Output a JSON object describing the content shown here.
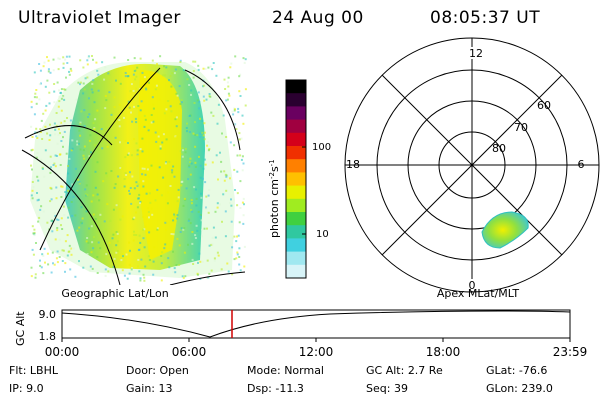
{
  "header": {
    "instrument": "Ultraviolet Imager",
    "date": "24 Aug 00",
    "time": "08:05:37 UT"
  },
  "left_panel": {
    "caption": "Geographic Lat/Lon"
  },
  "colorbar": {
    "label_prefix": "photon cm",
    "label_exp1": "-2",
    "label_mid": "s",
    "label_exp2": "-1",
    "ticks": [
      "100",
      "10"
    ],
    "colors": [
      "#000000",
      "#2a0030",
      "#6a0060",
      "#a00040",
      "#d4001a",
      "#f03000",
      "#ff8000",
      "#ffc000",
      "#e8f000",
      "#a0ec20",
      "#40d040",
      "#30c8a0",
      "#40d0e0",
      "#a0e8f0",
      "#d8f4f8"
    ]
  },
  "polar_panel": {
    "caption": "Apex MLat/MLT",
    "mlt_labels": {
      "top": "12",
      "left": "18",
      "right": "6",
      "bottom": "0"
    },
    "lat_labels": [
      "60",
      "70",
      "80"
    ]
  },
  "timeline": {
    "ylabel": "GC Alt",
    "y_ticks": [
      "9.0",
      "1.8"
    ],
    "x_ticks": [
      "00:00",
      "06:00",
      "12:00",
      "18:00",
      "23:59"
    ],
    "marker_time": "08:05"
  },
  "status": {
    "row1": [
      {
        "key": "Flt:",
        "value": "LBHL"
      },
      {
        "key": "Door:",
        "value": "Open"
      },
      {
        "key": "Mode:",
        "value": "Normal"
      },
      {
        "key": "GC Alt:",
        "value": "2.7 Re"
      },
      {
        "key": "GLat:",
        "value": "-76.6"
      }
    ],
    "row2": [
      {
        "key": "IP:",
        "value": "9.0"
      },
      {
        "key": "Gain:",
        "value": "13"
      },
      {
        "key": "Dsp:",
        "value": "-11.3"
      },
      {
        "key": "Seq:",
        "value": "39"
      },
      {
        "key": "GLon:",
        "value": "239.0"
      }
    ]
  }
}
